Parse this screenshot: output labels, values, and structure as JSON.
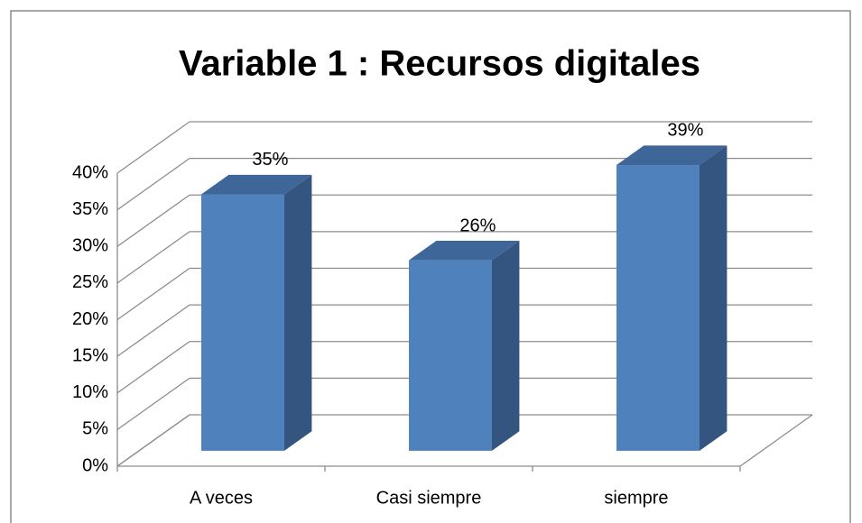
{
  "chart_data": {
    "type": "bar3d",
    "title": "Variable 1 : Recursos digitales",
    "categories": [
      "A veces",
      "Casi siempre",
      "siempre"
    ],
    "values": [
      35,
      26,
      39
    ],
    "value_labels": [
      "35%",
      "26%",
      "39%"
    ],
    "color": "#4f81bd",
    "ylim": [
      0,
      40
    ],
    "yticks": [
      {
        "value": 0,
        "label": "0%"
      },
      {
        "value": 5,
        "label": "5%"
      },
      {
        "value": 10,
        "label": "10%"
      },
      {
        "value": 15,
        "label": "15%"
      },
      {
        "value": 20,
        "label": "20%"
      },
      {
        "value": 25,
        "label": "25%"
      },
      {
        "value": 30,
        "label": "30%"
      },
      {
        "value": 35,
        "label": "35%"
      },
      {
        "value": 40,
        "label": "40%"
      }
    ],
    "grid": true
  }
}
